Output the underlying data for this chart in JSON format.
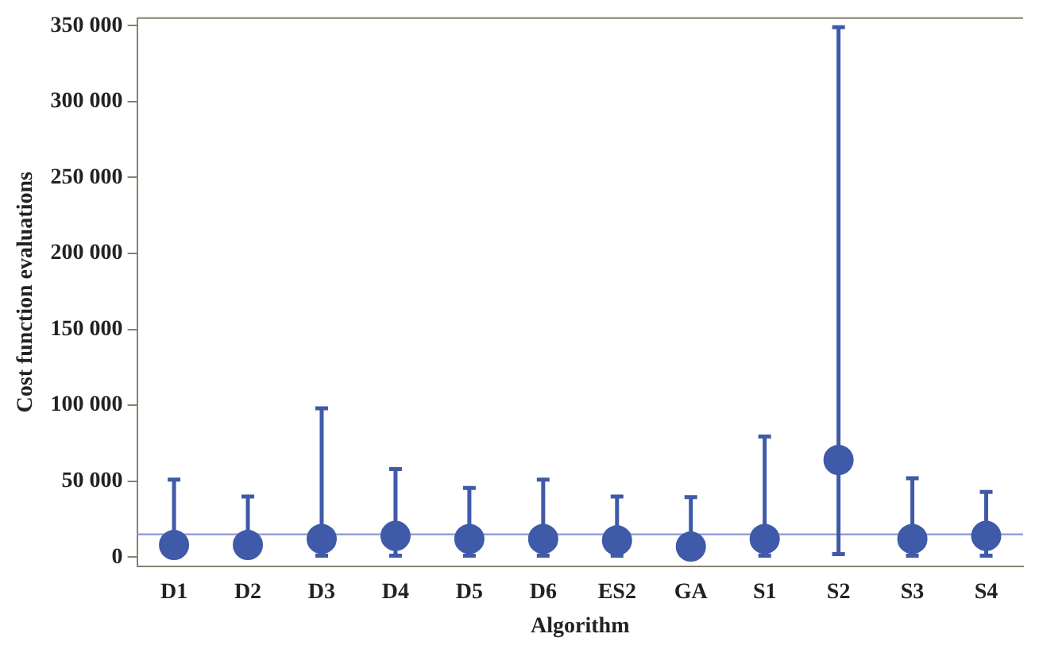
{
  "chart_data": {
    "type": "scatter",
    "xlabel": "Algorithm",
    "ylabel": "Cost function evaluations",
    "categories": [
      "D1",
      "D2",
      "D3",
      "D4",
      "D5",
      "D6",
      "ES2",
      "GA",
      "S1",
      "S2",
      "S3",
      "S4"
    ],
    "series": [
      {
        "color": "#3f5aa8",
        "values": [
          8000,
          8000,
          12000,
          14000,
          12000,
          12000,
          11000,
          7000,
          12000,
          64000,
          12000,
          14000
        ],
        "errors": [
          [
            8000,
            51000
          ],
          [
            8000,
            40000
          ],
          [
            1000,
            98000
          ],
          [
            1000,
            58000
          ],
          [
            1000,
            45500
          ],
          [
            1000,
            51000
          ],
          [
            1000,
            40000
          ],
          [
            7000,
            39500
          ],
          [
            1000,
            79500
          ],
          [
            2000,
            349000
          ],
          [
            1000,
            52000
          ],
          [
            1000,
            43000
          ]
        ]
      }
    ],
    "ylim": [
      -6000,
      355000
    ],
    "yticks": [
      {
        "value": 0,
        "label": "0"
      },
      {
        "value": 50000,
        "label": "50 000"
      },
      {
        "value": 100000,
        "label": "100 000"
      },
      {
        "value": 150000,
        "label": "150 000"
      },
      {
        "value": 200000,
        "label": "200 000"
      },
      {
        "value": 250000,
        "label": "250 000"
      },
      {
        "value": 300000,
        "label": "300 000"
      },
      {
        "value": 350000,
        "label": "350 000"
      }
    ],
    "ref_lines": [
      {
        "axis": "y",
        "value": 15000,
        "color": "#8f96d4"
      }
    ],
    "marker": "circle",
    "grid": false,
    "legend": false
  }
}
